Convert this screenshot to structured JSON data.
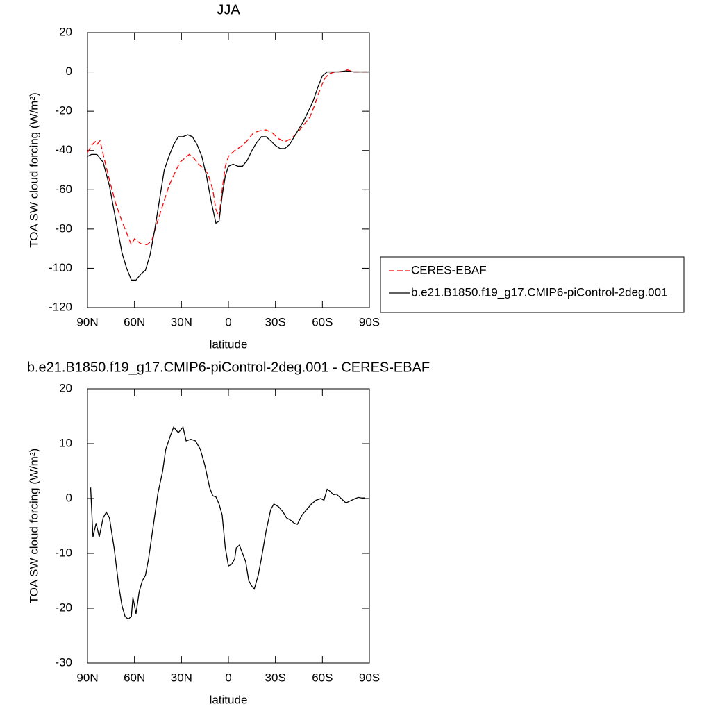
{
  "chart_data": [
    {
      "type": "line",
      "title": "JJA",
      "xlabel": "latitude",
      "ylabel": "TOA SW cloud forcing (W/m²)",
      "xlim": [
        90,
        -90
      ],
      "ylim": [
        -120,
        20
      ],
      "xticks": [
        {
          "value": 90,
          "label": "90N"
        },
        {
          "value": 60,
          "label": "60N"
        },
        {
          "value": 30,
          "label": "30N"
        },
        0,
        {
          "value": -30,
          "label": "30S"
        },
        {
          "value": -60,
          "label": "60S"
        },
        {
          "value": -90,
          "label": "90S"
        }
      ],
      "yticks": [
        20,
        0,
        -20,
        -40,
        -60,
        -80,
        -100,
        -120
      ],
      "legend": "right",
      "series": [
        {
          "name": "CERES-EBAF",
          "color": "#ff0000",
          "dashed": true,
          "x": [
            90,
            87,
            85,
            84,
            82,
            80,
            76,
            72,
            68,
            64,
            62,
            60,
            56,
            52,
            49,
            46,
            42,
            38,
            34,
            31,
            28,
            25,
            22,
            19,
            16,
            13,
            10,
            8,
            6,
            4,
            2,
            0,
            -4,
            -8,
            -12,
            -16,
            -20,
            -24,
            -28,
            -32,
            -36,
            -40,
            -44,
            -48,
            -52,
            -55,
            -58,
            -61,
            -64,
            -68,
            -72,
            -76,
            -80,
            -85,
            -90
          ],
          "values": [
            -41,
            -37,
            -35.5,
            -37,
            -35,
            -42,
            -55,
            -67,
            -76,
            -84,
            -88,
            -85,
            -87.5,
            -88,
            -86,
            -78,
            -68,
            -58,
            -51,
            -46,
            -44,
            -42,
            -44,
            -47,
            -49,
            -52,
            -60,
            -70,
            -74,
            -60,
            -48,
            -43,
            -40,
            -38,
            -35,
            -31,
            -30,
            -29.5,
            -31,
            -34,
            -35.5,
            -34,
            -31,
            -27,
            -23,
            -17,
            -10,
            -4,
            -1,
            0,
            0,
            1,
            0,
            0,
            0
          ]
        },
        {
          "name": "b.e21.B1850.f19_g17.CMIP6-piControl-2deg.001",
          "color": "#000000",
          "dashed": false,
          "x": [
            90,
            87.5,
            84,
            80,
            76,
            72,
            68,
            65,
            62,
            59,
            56,
            53,
            50,
            47,
            44,
            41,
            38,
            35,
            32,
            29,
            26,
            23,
            20,
            17,
            14,
            11,
            8,
            6,
            4,
            2,
            0,
            -3,
            -6,
            -9,
            -12,
            -15,
            -18,
            -21,
            -24,
            -27,
            -30,
            -33,
            -36,
            -39,
            -42,
            -45,
            -48,
            -51,
            -54,
            -57,
            -60,
            -63,
            -66,
            -70,
            -75,
            -80,
            -85,
            -90
          ],
          "values": [
            -43,
            -42,
            -42,
            -46,
            -58,
            -75,
            -92,
            -100,
            -106,
            -106,
            -103,
            -101,
            -93,
            -80,
            -65,
            -50,
            -43,
            -37,
            -33,
            -33,
            -32,
            -33,
            -37,
            -43,
            -53,
            -66,
            -77,
            -76,
            -63,
            -53,
            -48,
            -47,
            -48,
            -48,
            -45,
            -40,
            -36,
            -33,
            -33,
            -35,
            -37.5,
            -39,
            -39,
            -37,
            -33,
            -29,
            -25,
            -20,
            -15,
            -8,
            -2,
            0,
            0,
            0,
            0.5,
            0,
            0,
            0
          ]
        }
      ]
    },
    {
      "type": "line",
      "title": "b.e21.B1850.f19_g17.CMIP6-piControl-2deg.001 - CERES-EBAF",
      "xlabel": "latitude",
      "ylabel": "TOA SW cloud forcing (W/m²)",
      "xlim": [
        90,
        -90
      ],
      "ylim": [
        -30,
        20
      ],
      "xticks": [
        {
          "value": 90,
          "label": "90N"
        },
        {
          "value": 60,
          "label": "60N"
        },
        {
          "value": 30,
          "label": "30N"
        },
        0,
        {
          "value": -30,
          "label": "30S"
        },
        {
          "value": -60,
          "label": "60S"
        },
        {
          "value": -90,
          "label": "90S"
        }
      ],
      "yticks": [
        20,
        10,
        0,
        -10,
        -20,
        -30
      ],
      "series": [
        {
          "color": "#000000",
          "dashed": false,
          "x": [
            88,
            86.5,
            84.5,
            82.5,
            80,
            78,
            76,
            73,
            70,
            68,
            66,
            64,
            62,
            61,
            59,
            57,
            55,
            53,
            51,
            48,
            45,
            42,
            40,
            37,
            35,
            32,
            29,
            27,
            24,
            21,
            18,
            15,
            12,
            10,
            8,
            6,
            4,
            2,
            0,
            -2,
            -4,
            -5,
            -7,
            -9,
            -11,
            -13,
            -15,
            -16.5,
            -19,
            -21,
            -24,
            -27,
            -29,
            -32,
            -35,
            -37,
            -40,
            -42,
            -44,
            -47,
            -50,
            -53,
            -56,
            -59,
            -61,
            -63,
            -65,
            -67,
            -69,
            -72,
            -75,
            -78,
            -81,
            -83,
            -85,
            -87
          ],
          "values": [
            2,
            -7,
            -4.5,
            -7,
            -3.5,
            -2.5,
            -3.5,
            -9,
            -16,
            -19.5,
            -21.5,
            -22,
            -21.5,
            -18,
            -21,
            -17,
            -15,
            -14,
            -11,
            -5,
            1,
            5,
            9,
            11.5,
            13,
            12,
            13,
            10.5,
            10.8,
            10.5,
            9,
            6,
            2,
            0.5,
            0.3,
            -1,
            -3,
            -9,
            -12.3,
            -12,
            -11,
            -9,
            -8.5,
            -10,
            -11.5,
            -15,
            -16,
            -16.5,
            -14,
            -11,
            -6,
            -2,
            -1,
            -1.5,
            -2.5,
            -3.5,
            -4,
            -4.5,
            -4.7,
            -3,
            -2,
            -1,
            -0.3,
            0,
            -0.3,
            1.7,
            1.3,
            0.7,
            0.8,
            0,
            -0.8,
            -0.4,
            0,
            0.2,
            0.1,
            0.1
          ]
        }
      ]
    }
  ]
}
